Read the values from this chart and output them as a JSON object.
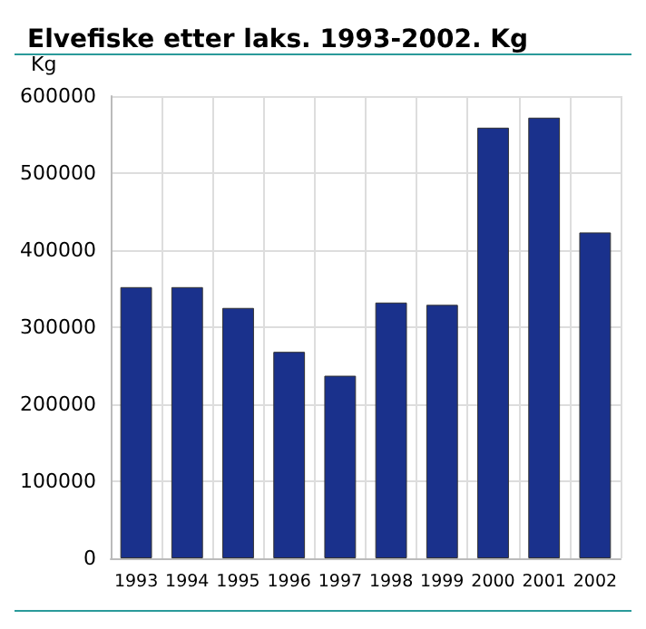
{
  "chart_data": {
    "type": "bar",
    "title": "Elvefiske etter laks. 1993-2002. Kg",
    "ylabel": "Kg",
    "categories": [
      "1993",
      "1994",
      "1995",
      "1996",
      "1997",
      "1998",
      "1999",
      "2000",
      "2001",
      "2002"
    ],
    "values": [
      352000,
      352000,
      325000,
      268000,
      237000,
      332000,
      329000,
      559000,
      572000,
      423000
    ],
    "color": "#1a318c",
    "ylim": [
      0,
      600000
    ],
    "yticks": [
      0,
      100000,
      200000,
      300000,
      400000,
      500000,
      600000
    ],
    "grid": true
  }
}
